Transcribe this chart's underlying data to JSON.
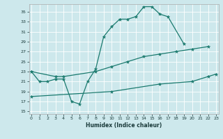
{
  "xlabel": "Humidex (Indice chaleur)",
  "bg_color": "#cde8ec",
  "line_color": "#1a7a6e",
  "grid_color": "#ffffff",
  "yticks": [
    15,
    17,
    19,
    21,
    23,
    25,
    27,
    29,
    31,
    33,
    35
  ],
  "xticks": [
    0,
    1,
    2,
    3,
    4,
    5,
    6,
    7,
    8,
    9,
    10,
    11,
    12,
    13,
    14,
    15,
    16,
    17,
    18,
    19,
    20,
    21,
    22,
    23
  ],
  "curve1_x": [
    0,
    1,
    2,
    3,
    4,
    5,
    6,
    7,
    8,
    9,
    10,
    11,
    12,
    13,
    14,
    15,
    16,
    17,
    19
  ],
  "curve1_y": [
    23,
    21,
    21,
    21.5,
    21.5,
    17,
    16.5,
    21,
    23.5,
    30,
    32,
    33.5,
    33.5,
    34,
    36,
    36,
    34.5,
    34,
    28.5
  ],
  "curve2_x": [
    0,
    3,
    4,
    8,
    10,
    12,
    14,
    16,
    18,
    20,
    22
  ],
  "curve2_y": [
    23,
    22,
    22,
    23,
    24,
    25,
    26,
    26.5,
    27,
    27.5,
    28
  ],
  "curve3_x": [
    0,
    10,
    16,
    20,
    22,
    23
  ],
  "curve3_y": [
    18,
    19,
    20.5,
    21,
    22,
    22.5
  ],
  "xlim": [
    -0.3,
    23.3
  ],
  "ylim": [
    14.5,
    36.5
  ]
}
